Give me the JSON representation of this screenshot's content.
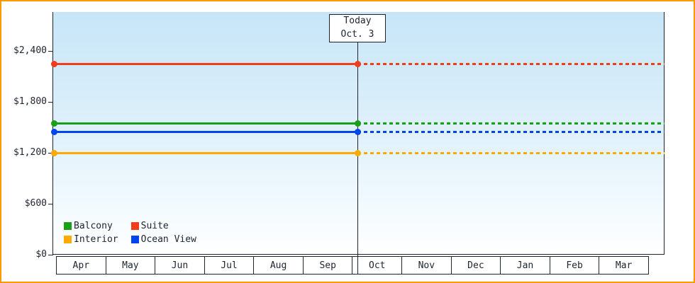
{
  "chart_data": {
    "type": "line",
    "title": "",
    "xlabel": "",
    "ylabel": "",
    "categories": [
      "Apr",
      "May",
      "Jun",
      "Jul",
      "Aug",
      "Sep",
      "Oct",
      "Nov",
      "Dec",
      "Jan",
      "Feb",
      "Mar"
    ],
    "series": [
      {
        "name": "Balcony",
        "color": "#17a017",
        "value": 1550
      },
      {
        "name": "Suite",
        "color": "#f23c1c",
        "value": 2250
      },
      {
        "name": "Interior",
        "color": "#ffaa00",
        "value": 1200
      },
      {
        "name": "Ocean View",
        "color": "#0044ee",
        "value": 1450
      }
    ],
    "y_ticks": [
      "$2,400",
      "$1,800",
      "$1,200",
      "$600",
      "$0"
    ],
    "y_tick_values": [
      2400,
      1800,
      1200,
      600,
      0
    ],
    "ylim": [
      0,
      2860
    ],
    "grid": false,
    "today": {
      "label_line1": "Today",
      "label_line2": "Oct. 3",
      "month_index": 6,
      "day_fraction": 0.1
    },
    "line_style": {
      "solid_before_today": true,
      "dotted_after_today": true
    },
    "legend": {
      "position": "bottom-left",
      "items": [
        "Balcony",
        "Suite",
        "Interior",
        "Ocean View"
      ]
    }
  },
  "frame": {
    "border_color": "#ff9900"
  }
}
